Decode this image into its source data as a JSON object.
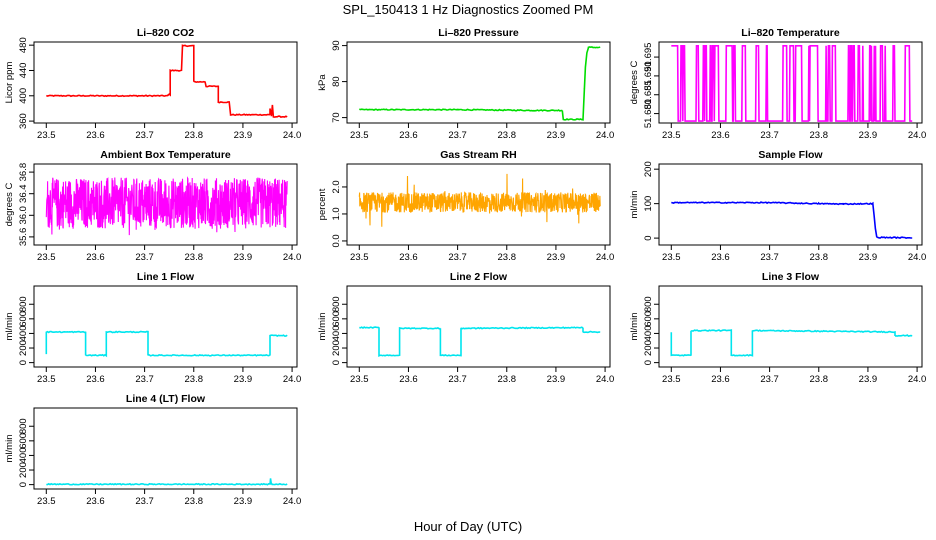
{
  "figure": {
    "title": "SPL_150413  1 Hz Diagnostics Zoomed PM",
    "xlabel": "Hour of Day (UTC)"
  },
  "chart_data": [
    {
      "id": "co2",
      "type": "line",
      "title": "Li–820 CO2",
      "ylabel": "Licor ppm",
      "color": "#ff0000",
      "xlim": [
        23.475,
        24.01
      ],
      "ylim": [
        357,
        485
      ],
      "xticks": [
        "23.5",
        "23.6",
        "23.7",
        "23.8",
        "23.9",
        "24.0"
      ],
      "yticks": [
        "360",
        "400",
        "440",
        "480"
      ],
      "series": [
        {
          "x": [
            23.5,
            23.748,
            23.748,
            23.752,
            23.752,
            23.775,
            23.777,
            23.8,
            23.8,
            23.823,
            23.825,
            23.85,
            23.85,
            23.872,
            23.875,
            23.955,
            23.955,
            23.958,
            23.96,
            23.962,
            23.962,
            23.99
          ],
          "y": [
            400,
            400,
            402,
            402,
            440,
            440,
            479,
            479,
            422,
            422,
            415,
            415,
            390,
            390,
            370,
            370,
            380,
            368,
            385,
            366,
            367,
            367
          ]
        }
      ]
    },
    {
      "id": "pressure",
      "type": "line",
      "title": "Li–820 Pressure",
      "ylabel": "kPa",
      "color": "#00dd00",
      "xlim": [
        23.475,
        24.01
      ],
      "ylim": [
        68.5,
        91
      ],
      "xticks": [
        "23.5",
        "23.6",
        "23.7",
        "23.8",
        "23.9",
        "24.0"
      ],
      "yticks": [
        "70",
        "80",
        "90"
      ],
      "series": [
        {
          "x": [
            23.5,
            23.7,
            23.85,
            23.913,
            23.915,
            23.955,
            23.958,
            23.96,
            23.963,
            23.966,
            23.99
          ],
          "y": [
            72.2,
            72.2,
            72.0,
            72.0,
            69.5,
            69.5,
            78,
            84,
            88,
            89.5,
            89.5
          ]
        }
      ]
    },
    {
      "id": "licor-temp",
      "type": "line",
      "title": "Li–820 Temperature",
      "ylabel": "degrees C",
      "color": "#ff00ff",
      "xlim": [
        23.475,
        24.01
      ],
      "ylim": [
        51.6775,
        51.699
      ],
      "xticks": [
        "23.5",
        "23.6",
        "23.7",
        "23.8",
        "23.9",
        "24.0"
      ],
      "yticks": [
        "51.680",
        "51.685",
        "51.690",
        "51.695"
      ],
      "series": [
        {
          "x": [
            23.5,
            24.0
          ],
          "y": [
            51.698,
            51.678
          ]
        }
      ]
    },
    {
      "id": "ambient-temp",
      "type": "line",
      "title": "Ambient Box Temperature",
      "ylabel": "degrees C",
      "color": "#ff00ff",
      "xlim": [
        23.475,
        24.01
      ],
      "ylim": [
        35.45,
        36.95
      ],
      "xticks": [
        "23.5",
        "23.6",
        "23.7",
        "23.8",
        "23.9",
        "24.0"
      ],
      "yticks": [
        "35.6",
        "36.0",
        "36.4",
        "36.8"
      ],
      "series": [
        {
          "x": [
            23.5,
            24.0
          ],
          "y": [
            35.5,
            36.85
          ]
        }
      ]
    },
    {
      "id": "rh",
      "type": "line",
      "title": "Gas Stream RH",
      "ylabel": "percent",
      "color": "#ffa500",
      "xlim": [
        23.475,
        24.01
      ],
      "ylim": [
        -0.15,
        2.85
      ],
      "xticks": [
        "23.5",
        "23.6",
        "23.7",
        "23.8",
        "23.9",
        "24.0"
      ],
      "yticks": [
        "0.0",
        "1.0",
        "2.0"
      ],
      "series": [
        {
          "x": [
            23.5,
            24.0
          ],
          "y": [
            1.0,
            1.9
          ]
        }
      ]
    },
    {
      "id": "sample-flow",
      "type": "line",
      "title": "Sample Flow",
      "ylabel": "ml/min",
      "color": "#0000ff",
      "xlim": [
        23.475,
        24.01
      ],
      "ylim": [
        -20,
        215
      ],
      "xticks": [
        "23.5",
        "23.6",
        "23.7",
        "23.8",
        "23.9",
        "24.0"
      ],
      "yticks": [
        "0",
        "100",
        "200"
      ],
      "series": [
        {
          "x": [
            23.5,
            23.7,
            23.8,
            23.85,
            23.91,
            23.915,
            23.918,
            23.99
          ],
          "y": [
            103,
            103,
            100,
            99,
            100,
            30,
            2,
            1
          ]
        }
      ]
    },
    {
      "id": "line1-flow",
      "type": "line",
      "title": "Line 1 Flow",
      "ylabel": "ml/min",
      "color": "#00e5ee",
      "xlim": [
        23.475,
        24.01
      ],
      "ylim": [
        -60,
        1050
      ],
      "xticks": [
        "23.5",
        "23.6",
        "23.7",
        "23.8",
        "23.9",
        "24.0"
      ],
      "yticks": [
        "0",
        "200",
        "400",
        "600",
        "800"
      ],
      "series": [
        {
          "x": [
            23.5,
            23.5,
            23.58,
            23.58,
            23.622,
            23.622,
            23.707,
            23.707,
            23.955,
            23.955,
            23.99
          ],
          "y": [
            120,
            420,
            420,
            100,
            100,
            420,
            420,
            100,
            100,
            370,
            370
          ]
        }
      ]
    },
    {
      "id": "line2-flow",
      "type": "line",
      "title": "Line 2 Flow",
      "ylabel": "ml/min",
      "color": "#00e5ee",
      "xlim": [
        23.475,
        24.01
      ],
      "ylim": [
        -60,
        1050
      ],
      "xticks": [
        "23.5",
        "23.6",
        "23.7",
        "23.8",
        "23.9",
        "24.0"
      ],
      "yticks": [
        "0",
        "200",
        "400",
        "600",
        "800"
      ],
      "series": [
        {
          "x": [
            23.5,
            23.54,
            23.54,
            23.582,
            23.582,
            23.665,
            23.665,
            23.707,
            23.707,
            23.955,
            23.955,
            23.99
          ],
          "y": [
            480,
            480,
            100,
            100,
            470,
            470,
            100,
            100,
            470,
            480,
            420,
            420
          ]
        }
      ]
    },
    {
      "id": "line3-flow",
      "type": "line",
      "title": "Line 3 Flow",
      "ylabel": "ml/min",
      "color": "#00e5ee",
      "xlim": [
        23.475,
        24.01
      ],
      "ylim": [
        -60,
        1050
      ],
      "xticks": [
        "23.5",
        "23.6",
        "23.7",
        "23.8",
        "23.9",
        "24.0"
      ],
      "yticks": [
        "0",
        "200",
        "400",
        "600",
        "800"
      ],
      "series": [
        {
          "x": [
            23.5,
            23.5,
            23.54,
            23.54,
            23.622,
            23.622,
            23.665,
            23.665,
            23.955,
            23.955,
            23.99
          ],
          "y": [
            420,
            100,
            100,
            440,
            440,
            100,
            100,
            440,
            420,
            370,
            370
          ]
        }
      ]
    },
    {
      "id": "line4-flow",
      "type": "line",
      "title": "Line 4 (LT) Flow",
      "ylabel": "ml/min",
      "color": "#00e5ee",
      "xlim": [
        23.475,
        24.01
      ],
      "ylim": [
        -60,
        1050
      ],
      "xticks": [
        "23.5",
        "23.6",
        "23.7",
        "23.8",
        "23.9",
        "24.0"
      ],
      "yticks": [
        "0",
        "200",
        "400",
        "600",
        "800"
      ],
      "series": [
        {
          "x": [
            23.5,
            23.955,
            23.956,
            23.958,
            23.96,
            23.99
          ],
          "y": [
            5,
            5,
            80,
            5,
            5,
            5
          ]
        }
      ]
    }
  ]
}
